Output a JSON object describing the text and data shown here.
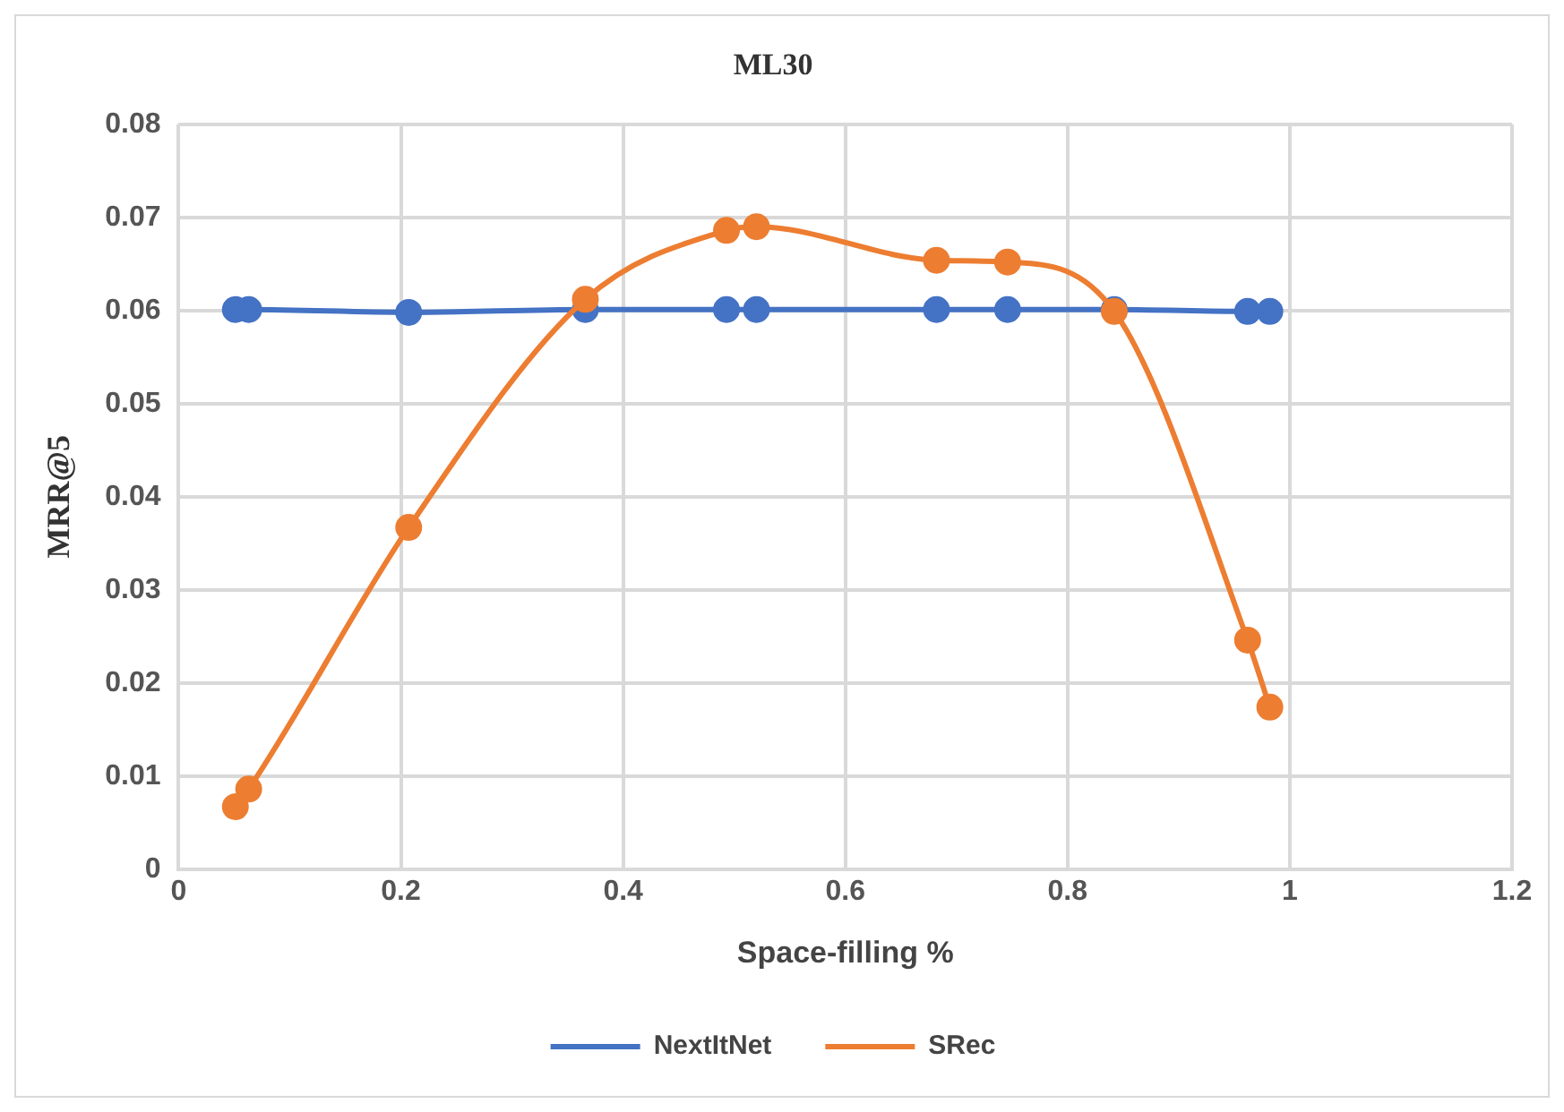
{
  "chart_data": {
    "type": "line",
    "title": "ML30",
    "xlabel": "Space-filling %",
    "ylabel": "MRR@5",
    "x": [
      0.051,
      0.063,
      0.207,
      0.366,
      0.493,
      0.52,
      0.682,
      0.746,
      0.842,
      0.962,
      0.982
    ],
    "series": [
      {
        "name": "NextItNet",
        "color": "#4472c4",
        "values": [
          0.0601,
          0.0601,
          0.0598,
          0.0601,
          0.0601,
          0.0601,
          0.0601,
          0.0601,
          0.0601,
          0.0599,
          0.0599
        ]
      },
      {
        "name": "SRec",
        "color": "#ed7d31",
        "values": [
          0.0067,
          0.0086,
          0.0367,
          0.0612,
          0.0686,
          0.069,
          0.0654,
          0.0652,
          0.0599,
          0.0246,
          0.0174
        ]
      }
    ],
    "xlim": [
      0,
      1.2
    ],
    "xticks": [
      0,
      0.2,
      0.4,
      0.6,
      0.8,
      1,
      1.2
    ],
    "ylim": [
      0,
      0.08
    ],
    "yticks": [
      0,
      0.01,
      0.02,
      0.03,
      0.04,
      0.05,
      0.06,
      0.07,
      0.08
    ],
    "grid": true,
    "legend": "bottom",
    "marker": "circle",
    "line_style": "solid"
  }
}
